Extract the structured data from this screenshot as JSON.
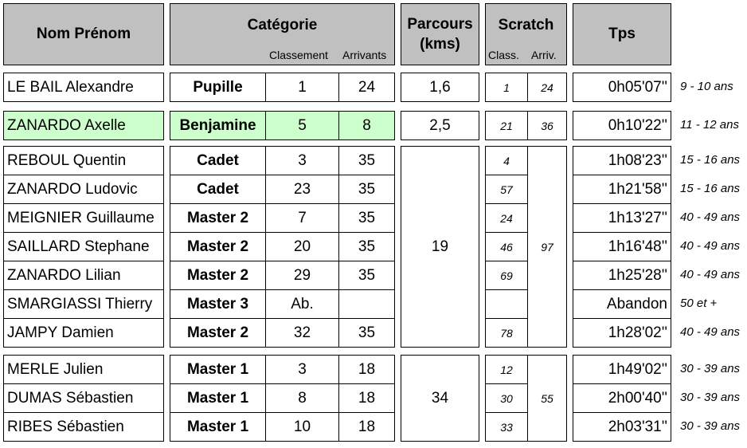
{
  "header": {
    "name": "Nom Prénom",
    "category": "Catégorie",
    "category_rank": "Classement",
    "category_finishers": "Arrivants",
    "course": "Parcours (kms)",
    "scratch": "Scratch",
    "scratch_rank": "Class.",
    "scratch_finishers": "Arriv.",
    "time": "Tps"
  },
  "highlight_color": "#ccffcc",
  "groups": [
    {
      "course": "1,6",
      "scratch_finishers": "24",
      "rows": [
        {
          "name": "LE BAIL Alexandre",
          "category": "Pupille",
          "rank": "1",
          "finishers": "24",
          "scratch_rank": "1",
          "time": "0h05'07''",
          "age": "9 - 10 ans",
          "highlight": false
        }
      ]
    },
    {
      "course": "2,5",
      "scratch_finishers": "36",
      "rows": [
        {
          "name": "ZANARDO Axelle",
          "category": "Benjamine",
          "rank": "5",
          "finishers": "8",
          "scratch_rank": "21",
          "time": "0h10'22''",
          "age": "11 - 12 ans",
          "highlight": true
        }
      ]
    },
    {
      "course": "19",
      "scratch_finishers": "97",
      "rows": [
        {
          "name": "REBOUL Quentin",
          "category": "Cadet",
          "rank": "3",
          "finishers": "35",
          "scratch_rank": "4",
          "time": "1h08'23''",
          "age": "15 - 16 ans",
          "highlight": false
        },
        {
          "name": "ZANARDO Ludovic",
          "category": "Cadet",
          "rank": "23",
          "finishers": "35",
          "scratch_rank": "57",
          "time": "1h21'58''",
          "age": "15 - 16 ans",
          "highlight": false
        },
        {
          "name": "MEIGNIER Guillaume",
          "category": "Master 2",
          "rank": "7",
          "finishers": "35",
          "scratch_rank": "24",
          "time": "1h13'27''",
          "age": "40 - 49 ans",
          "highlight": false
        },
        {
          "name": "SAILLARD Stephane",
          "category": "Master 2",
          "rank": "20",
          "finishers": "35",
          "scratch_rank": "46",
          "time": "1h16'48''",
          "age": "40 - 49 ans",
          "highlight": false
        },
        {
          "name": "ZANARDO Lilian",
          "category": "Master 2",
          "rank": "29",
          "finishers": "35",
          "scratch_rank": "69",
          "time": "1h25'28''",
          "age": "40 - 49 ans",
          "highlight": false
        },
        {
          "name": "SMARGIASSI Thierry",
          "category": "Master 3",
          "rank": "Ab.",
          "finishers": "",
          "scratch_rank": "",
          "time": "Abandon",
          "age": "50 et +",
          "highlight": false
        },
        {
          "name": "JAMPY Damien",
          "category": "Master 2",
          "rank": "32",
          "finishers": "35",
          "scratch_rank": "78",
          "time": "1h28'02''",
          "age": "40 - 49 ans",
          "highlight": false
        }
      ]
    },
    {
      "course": "34",
      "scratch_finishers": "55",
      "rows": [
        {
          "name": "MERLE Julien",
          "category": "Master 1",
          "rank": "3",
          "finishers": "18",
          "scratch_rank": "12",
          "time": "1h49'02''",
          "age": "30 - 39 ans",
          "highlight": false
        },
        {
          "name": "DUMAS Sébastien",
          "category": "Master 1",
          "rank": "8",
          "finishers": "18",
          "scratch_rank": "30",
          "time": "2h00'40''",
          "age": "30 - 39 ans",
          "highlight": false
        },
        {
          "name": "RIBES Sébastien",
          "category": "Master 1",
          "rank": "10",
          "finishers": "18",
          "scratch_rank": "33",
          "time": "2h03'31''",
          "age": "30 - 39 ans",
          "highlight": false
        }
      ]
    }
  ]
}
